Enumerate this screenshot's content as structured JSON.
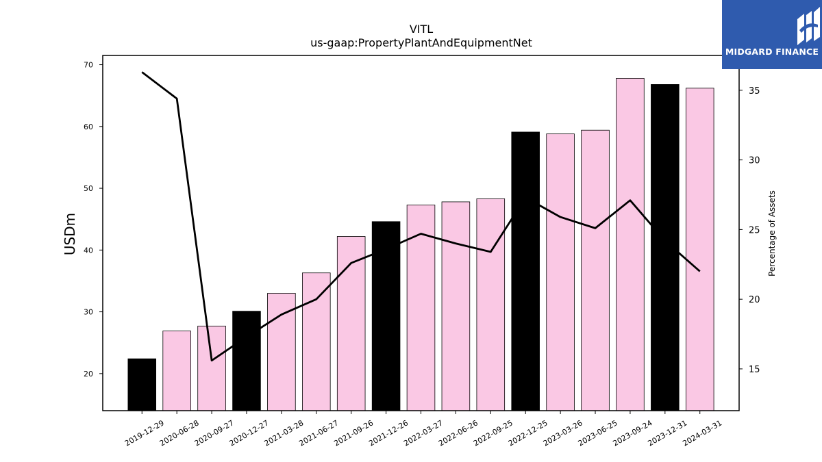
{
  "chart_data": {
    "type": "bar",
    "title": "VITL",
    "subtitle": "us-gaap:PropertyPlantAndEquipmentNet",
    "ylabel": "USDm",
    "y2label": "Percentage of Assets",
    "ylim": [
      14,
      71.5
    ],
    "y2lim": [
      12,
      37.5
    ],
    "yticks": [
      20,
      30,
      40,
      50,
      60,
      70
    ],
    "y2ticks": [
      15,
      20,
      25,
      30,
      35
    ],
    "categories": [
      "2019-12-29",
      "2020-06-28",
      "2020-09-27",
      "2020-12-27",
      "2021-03-28",
      "2021-06-27",
      "2021-09-26",
      "2021-12-26",
      "2022-03-27",
      "2022-06-26",
      "2022-09-25",
      "2022-12-25",
      "2023-03-26",
      "2023-06-25",
      "2023-09-24",
      "2023-12-31",
      "2024-03-31"
    ],
    "series": [
      {
        "values": [
          22.4,
          26.9,
          27.7,
          30.1,
          33.0,
          36.3,
          42.2,
          44.6,
          47.3,
          47.8,
          48.3,
          59.1,
          58.8,
          59.4,
          67.8,
          66.8,
          66.2
        ],
        "kind": "bar",
        "axis": "left",
        "colors": [
          "#000000",
          "#fac8e4",
          "#fac8e4",
          "#000000",
          "#fac8e4",
          "#fac8e4",
          "#fac8e4",
          "#000000",
          "#fac8e4",
          "#fac8e4",
          "#fac8e4",
          "#000000",
          "#fac8e4",
          "#fac8e4",
          "#fac8e4",
          "#000000",
          "#fac8e4"
        ]
      },
      {
        "values": [
          36.3,
          34.4,
          15.6,
          17.3,
          18.9,
          20.0,
          22.6,
          23.6,
          24.7,
          24.0,
          23.4,
          27.3,
          25.9,
          25.1,
          27.1,
          24.2,
          22.0
        ],
        "kind": "line",
        "axis": "right",
        "color": "#000000"
      }
    ],
    "grid": false,
    "legend": "none"
  },
  "logo": {
    "text": "MIDGARD FINANCE",
    "background": "#2f5bae",
    "color": "#ffffff"
  }
}
